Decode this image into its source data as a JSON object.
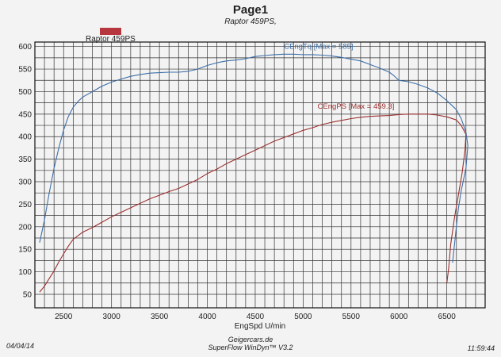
{
  "page": {
    "title": "Page1",
    "subtitle": "Raptor 459PS,"
  },
  "legend": {
    "entry": "Raptor 459PS",
    "color": "#b6383e"
  },
  "footer": {
    "date": "04/04/14",
    "time": "11:59:44",
    "site": "Geigercars.de",
    "software": "SuperFlow WinDyn™ V3.2"
  },
  "chart_data": {
    "type": "line",
    "title": "Page1",
    "subtitle": "Raptor 459PS,",
    "xlabel": "EngSpd U/min",
    "ylabel": "",
    "xlim": [
      2200,
      6900
    ],
    "ylim": [
      20,
      610
    ],
    "xticks": [
      2500,
      3000,
      3500,
      4000,
      4500,
      5000,
      5500,
      6000,
      6500
    ],
    "yticks": [
      50,
      100,
      150,
      200,
      250,
      300,
      350,
      400,
      450,
      500,
      550,
      600
    ],
    "grid": true,
    "legend_position": "top-left",
    "series": [
      {
        "name": "CEngTq [Max = 585]",
        "color": "#3d6fa8",
        "x": [
          2250,
          2300,
          2350,
          2400,
          2450,
          2500,
          2550,
          2600,
          2650,
          2700,
          2800,
          2900,
          3000,
          3100,
          3200,
          3300,
          3400,
          3500,
          3600,
          3700,
          3800,
          3900,
          4000,
          4100,
          4200,
          4300,
          4400,
          4500,
          4600,
          4700,
          4800,
          4900,
          5000,
          5100,
          5200,
          5300,
          5400,
          5500,
          5600,
          5700,
          5800,
          5900,
          5950,
          6000,
          6100,
          6200,
          6300,
          6400,
          6500,
          6600,
          6650,
          6700,
          6720,
          6700,
          6650,
          6620,
          6600,
          6580,
          6560
        ],
        "y": [
          165,
          215,
          275,
          330,
          375,
          415,
          445,
          465,
          478,
          488,
          500,
          512,
          521,
          528,
          534,
          538,
          541,
          542,
          543,
          543,
          545,
          550,
          558,
          564,
          568,
          570,
          573,
          578,
          580,
          582,
          583,
          583,
          582,
          582,
          581,
          579,
          576,
          572,
          568,
          560,
          552,
          543,
          535,
          525,
          522,
          516,
          508,
          497,
          480,
          460,
          440,
          410,
          380,
          330,
          280,
          240,
          200,
          160,
          120
        ]
      },
      {
        "name": "CEngPS [Max = 459.3]",
        "color": "#9a2f2e",
        "x": [
          2250,
          2300,
          2350,
          2400,
          2450,
          2500,
          2550,
          2600,
          2700,
          2800,
          2900,
          3000,
          3100,
          3200,
          3300,
          3400,
          3500,
          3600,
          3700,
          3800,
          3900,
          4000,
          4100,
          4200,
          4300,
          4400,
          4500,
          4600,
          4700,
          4800,
          4900,
          5000,
          5100,
          5200,
          5300,
          5400,
          5500,
          5600,
          5700,
          5800,
          5900,
          6000,
          6100,
          6200,
          6300,
          6400,
          6500,
          6600,
          6650,
          6700,
          6690,
          6660,
          6620,
          6580,
          6540,
          6520,
          6500
        ],
        "y": [
          55,
          68,
          85,
          102,
          122,
          140,
          157,
          172,
          188,
          198,
          210,
          222,
          232,
          242,
          252,
          262,
          270,
          278,
          285,
          295,
          305,
          318,
          328,
          340,
          350,
          360,
          370,
          380,
          390,
          398,
          406,
          414,
          420,
          427,
          432,
          436,
          440,
          443,
          445,
          446,
          447,
          449,
          450,
          450,
          450,
          448,
          444,
          437,
          425,
          405,
          370,
          320,
          270,
          220,
          160,
          110,
          75
        ]
      }
    ],
    "annotations": [
      {
        "text": "CEngTq [Max = 585]",
        "x": 4800,
        "y": 595,
        "color": "#3d6fa8"
      },
      {
        "text": "CEngPS [Max = 459.3]",
        "x": 5150,
        "y": 462,
        "color": "#9a2f2e"
      }
    ]
  }
}
